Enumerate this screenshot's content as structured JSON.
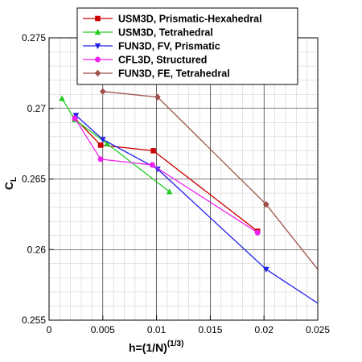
{
  "chart_data": {
    "type": "line",
    "xlabel_base": "h=(1/N)",
    "xlabel_sup": "(1/3)",
    "ylabel_base": "C",
    "ylabel_sub": "L",
    "xlim": [
      0,
      0.025
    ],
    "ylim": [
      0.255,
      0.275
    ],
    "x_ticks": [
      "0",
      "0.005",
      "0.01",
      "0.015",
      "0.02",
      "0.025"
    ],
    "y_ticks": [
      "0.255",
      "0.26",
      "0.265",
      "0.27",
      "0.275"
    ],
    "grid": true,
    "legend_position": "top-center",
    "series": [
      {
        "name": "USM3D, Prismatic-Hexahedral",
        "color": "#cc0000",
        "marker": "square",
        "x": [
          0.0024,
          0.0048,
          0.0097,
          0.0194
        ],
        "y": [
          0.2693,
          0.2674,
          0.267,
          0.2613
        ]
      },
      {
        "name": "USM3D, Tetrahedral",
        "color": "#22cc22",
        "marker": "triangle-up",
        "x": [
          0.0012,
          0.0024,
          0.0054,
          0.0112
        ],
        "y": [
          0.2707,
          0.2692,
          0.2675,
          0.2641
        ]
      },
      {
        "name": "FUN3D, FV, Prismatic",
        "color": "#2222ee",
        "marker": "triangle-down",
        "x": [
          0.0025,
          0.005,
          0.0101,
          0.0202,
          0.025
        ],
        "y": [
          0.2695,
          0.2678,
          0.2657,
          0.2586,
          0.2562
        ]
      },
      {
        "name": "CFL3D, Structured",
        "color": "#ee22ee",
        "marker": "circle",
        "x": [
          0.0024,
          0.0048,
          0.0096,
          0.0194
        ],
        "y": [
          0.2693,
          0.2664,
          0.266,
          0.2612
        ]
      },
      {
        "name": "FUN3D, FE, Tetrahedral",
        "color": "#a0524a",
        "marker": "diamond",
        "x": [
          0.005,
          0.0101,
          0.0202,
          0.025
        ],
        "y": [
          0.2712,
          0.2708,
          0.2632,
          0.2586
        ]
      }
    ]
  }
}
